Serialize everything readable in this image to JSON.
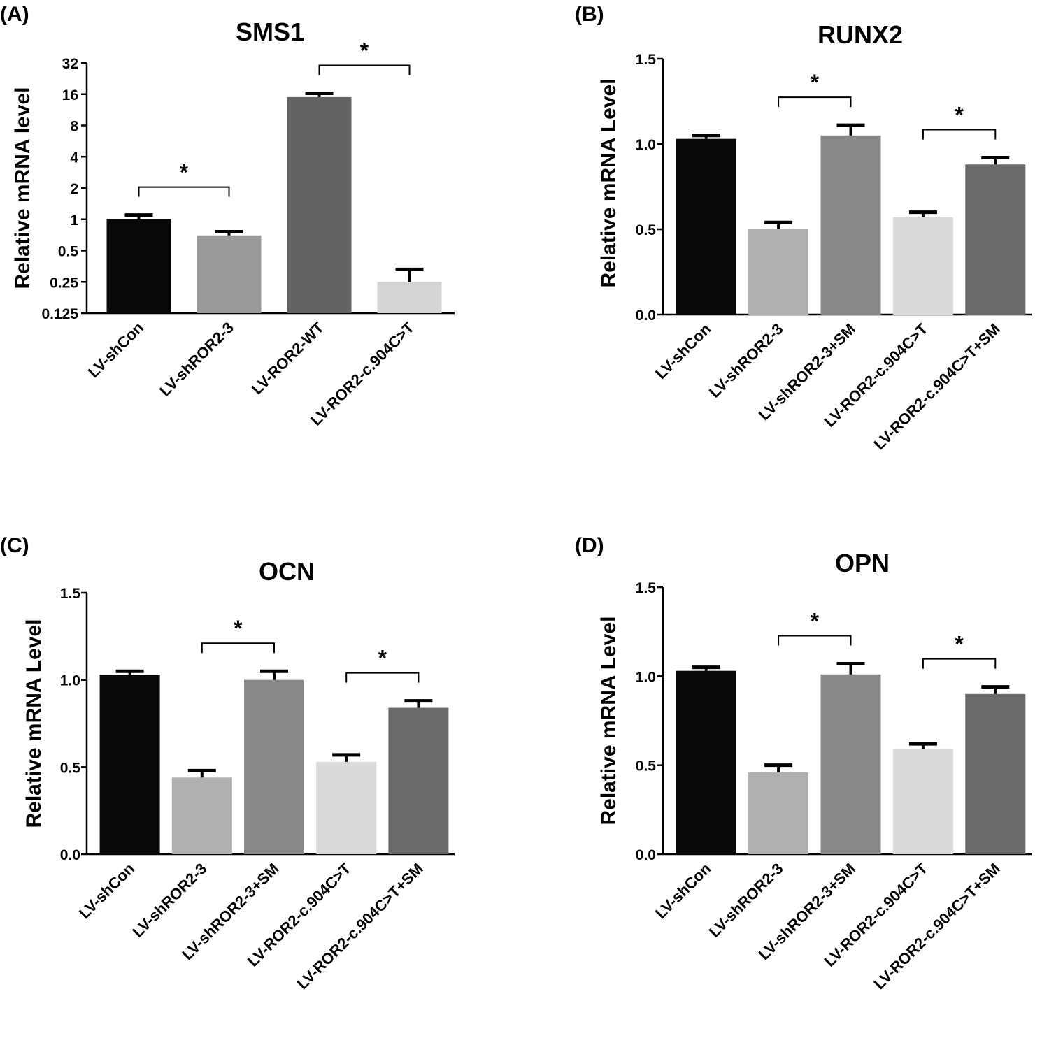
{
  "chart_data": [
    {
      "panel": "(A)",
      "type": "bar",
      "title": "SMS1",
      "xlabel": "",
      "ylabel": "Relative mRNA level",
      "yscale": "log2",
      "ylim": [
        0.125,
        32
      ],
      "yticks": [
        "0.125",
        "0.25",
        "0.5",
        "1",
        "2",
        "4",
        "8",
        "16",
        "32"
      ],
      "categories": [
        "LV-shCon",
        "LV-shROR2-3",
        "LV-ROR2-WT",
        "LV-ROR2-c.904C>T"
      ],
      "values": [
        1.0,
        0.7,
        15.0,
        0.25
      ],
      "errors": [
        0.1,
        0.06,
        1.3,
        0.08
      ],
      "bar_colors": [
        "#080808",
        "#9a9a9a",
        "#636363",
        "#d6d6d6"
      ],
      "significance": [
        {
          "from": 0,
          "to": 1,
          "label": "*"
        },
        {
          "from": 2,
          "to": 3,
          "label": "*"
        }
      ]
    },
    {
      "panel": "(B)",
      "type": "bar",
      "title": "RUNX2",
      "xlabel": "",
      "ylabel": "Relative mRNA Level",
      "yscale": "linear",
      "ylim": [
        0,
        1.5
      ],
      "yticks": [
        "0.0",
        "0.5",
        "1.0",
        "1.5"
      ],
      "categories": [
        "LV-shCon",
        "LV-shROR2-3",
        "LV-shROR2-3+SM",
        "LV-ROR2-c.904C>T",
        "LV-ROR2-c.904C>T+SM"
      ],
      "values": [
        1.03,
        0.5,
        1.05,
        0.57,
        0.88
      ],
      "errors": [
        0.02,
        0.04,
        0.06,
        0.03,
        0.04
      ],
      "bar_colors": [
        "#080808",
        "#b0b0b0",
        "#888888",
        "#dadada",
        "#6a6a6a"
      ],
      "significance": [
        {
          "from": 1,
          "to": 2,
          "label": "*"
        },
        {
          "from": 3,
          "to": 4,
          "label": "*"
        }
      ]
    },
    {
      "panel": "(C)",
      "type": "bar",
      "title": "OCN",
      "xlabel": "",
      "ylabel": "Relative mRNA Level",
      "yscale": "linear",
      "ylim": [
        0,
        1.5
      ],
      "yticks": [
        "0.0",
        "0.5",
        "1.0",
        "1.5"
      ],
      "categories": [
        "LV-shCon",
        "LV-shROR2-3",
        "LV-shROR2-3+SM",
        "LV-ROR2-c.904C>T",
        "LV-ROR2-c.904C>T+SM"
      ],
      "values": [
        1.03,
        0.44,
        1.0,
        0.53,
        0.84
      ],
      "errors": [
        0.02,
        0.04,
        0.05,
        0.04,
        0.04
      ],
      "bar_colors": [
        "#080808",
        "#b0b0b0",
        "#888888",
        "#dadada",
        "#6a6a6a"
      ],
      "significance": [
        {
          "from": 1,
          "to": 2,
          "label": "*"
        },
        {
          "from": 3,
          "to": 4,
          "label": "*"
        }
      ]
    },
    {
      "panel": "(D)",
      "type": "bar",
      "title": "OPN",
      "xlabel": "",
      "ylabel": "Relative mRNA Level",
      "yscale": "linear",
      "ylim": [
        0,
        1.5
      ],
      "yticks": [
        "0.0",
        "0.5",
        "1.0",
        "1.5"
      ],
      "categories": [
        "LV-shCon",
        "LV-shROR2-3",
        "LV-shROR2-3+SM",
        "LV-ROR2-c.904C>T",
        "LV-ROR2-c.904C>T+SM"
      ],
      "values": [
        1.03,
        0.46,
        1.01,
        0.59,
        0.9
      ],
      "errors": [
        0.02,
        0.04,
        0.06,
        0.03,
        0.04
      ],
      "bar_colors": [
        "#080808",
        "#b0b0b0",
        "#888888",
        "#dadada",
        "#6a6a6a"
      ],
      "significance": [
        {
          "from": 1,
          "to": 2,
          "label": "*"
        },
        {
          "from": 3,
          "to": 4,
          "label": "*"
        }
      ]
    }
  ]
}
